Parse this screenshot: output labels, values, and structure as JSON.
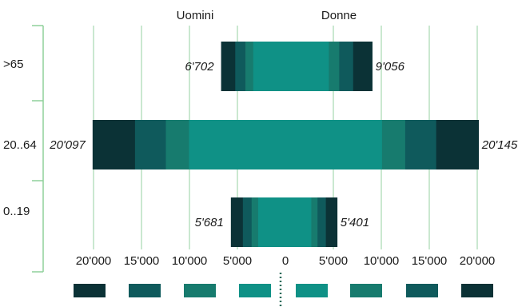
{
  "chart_data": {
    "type": "bar",
    "layout": "population-pyramid",
    "categories": [
      ">65",
      "20..64",
      "0..19"
    ],
    "headers": {
      "left": "Uomini",
      "right": "Donne"
    },
    "series": [
      {
        "name": "Uomini",
        "values": [
          6702,
          20097,
          5681
        ],
        "labels": [
          "6'702",
          "20'097",
          "5'681"
        ]
      },
      {
        "name": "Donne",
        "values": [
          9056,
          20145,
          5401
        ],
        "labels": [
          "9'056",
          "20'145",
          "5'401"
        ]
      }
    ],
    "segment_shares": [
      0.22,
      0.16,
      0.12,
      0.5
    ],
    "x_ticks": [
      {
        "value": -20000,
        "label": "20'000"
      },
      {
        "value": -15000,
        "label": "15'000"
      },
      {
        "value": -10000,
        "label": "10'000"
      },
      {
        "value": -5000,
        "label": "5'000"
      },
      {
        "value": 0,
        "label": "0"
      },
      {
        "value": 5000,
        "label": "5'000"
      },
      {
        "value": 10000,
        "label": "10'000"
      },
      {
        "value": 15000,
        "label": "15'000"
      },
      {
        "value": 20000,
        "label": "20'000"
      }
    ],
    "xlim": [
      -22000,
      22000
    ],
    "grid": true,
    "colors": {
      "segments": [
        "#0b3236",
        "#0f5a5c",
        "#177b6e",
        "#0f9186"
      ],
      "grid": "#b8e0c0",
      "bracket": "#8fd19a",
      "center_dots": "#2a6b5a"
    }
  }
}
